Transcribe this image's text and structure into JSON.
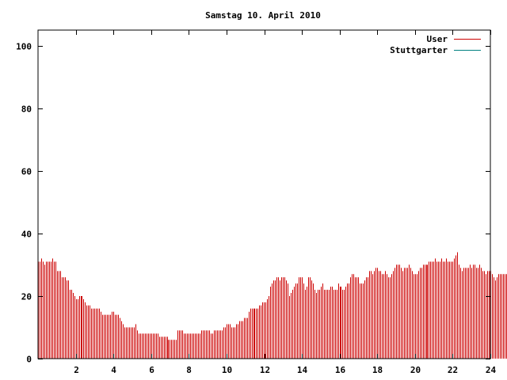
{
  "chart_data": {
    "type": "bar",
    "title": "Samstag 10. April 2010",
    "xlabel": "",
    "ylabel": "",
    "xlim": [
      0,
      24
    ],
    "ylim": [
      0,
      105
    ],
    "x_ticks": [
      2,
      4,
      6,
      8,
      10,
      12,
      14,
      16,
      18,
      20,
      22,
      24
    ],
    "y_ticks": [
      0,
      20,
      40,
      60,
      80,
      100
    ],
    "grid": false,
    "legend_position": "top-right",
    "bar_interval_hours": 0.0833,
    "series": [
      {
        "name": "User",
        "color": "#cc0000",
        "values": [
          31,
          31,
          32,
          31,
          30,
          31,
          31,
          31,
          31,
          32,
          31,
          31,
          28,
          28,
          28,
          26,
          26,
          26,
          25,
          25,
          22,
          22,
          21,
          20,
          19,
          19,
          20,
          20,
          20,
          19,
          18,
          17,
          17,
          17,
          16,
          16,
          16,
          16,
          16,
          16,
          15,
          14,
          14,
          14,
          14,
          14,
          14,
          15,
          15,
          14,
          14,
          14,
          13,
          12,
          11,
          10,
          10,
          10,
          10,
          10,
          10,
          10,
          11,
          9,
          8,
          8,
          8,
          8,
          8,
          8,
          8,
          8,
          8,
          8,
          8,
          8,
          8,
          7,
          7,
          7,
          7,
          7,
          7,
          6,
          6,
          6,
          6,
          6,
          6,
          9,
          9,
          9,
          9,
          8,
          8,
          8,
          8,
          8,
          8,
          8,
          8,
          8,
          8,
          8,
          9,
          9,
          9,
          9,
          9,
          9,
          8,
          8,
          9,
          9,
          9,
          9,
          9,
          9,
          10,
          10,
          11,
          11,
          11,
          10,
          10,
          10,
          11,
          11,
          12,
          12,
          12,
          13,
          13,
          13,
          15,
          16,
          16,
          16,
          16,
          16,
          16,
          17,
          17,
          18,
          18,
          18,
          19,
          20,
          23,
          24,
          25,
          25,
          26,
          26,
          25,
          26,
          26,
          26,
          25,
          24,
          20,
          21,
          22,
          23,
          24,
          24,
          26,
          26,
          26,
          24,
          22,
          23,
          26,
          26,
          25,
          24,
          22,
          21,
          22,
          22,
          23,
          24,
          22,
          22,
          22,
          22,
          23,
          23,
          22,
          22,
          22,
          24,
          23,
          23,
          22,
          22,
          23,
          24,
          24,
          26,
          27,
          27,
          26,
          26,
          26,
          24,
          24,
          24,
          25,
          26,
          26,
          28,
          28,
          27,
          28,
          29,
          29,
          28,
          28,
          27,
          27,
          28,
          27,
          26,
          26,
          27,
          28,
          29,
          30,
          30,
          30,
          29,
          28,
          29,
          29,
          29,
          30,
          29,
          28,
          27,
          27,
          27,
          28,
          29,
          29,
          30,
          30,
          30,
          30,
          31,
          31,
          31,
          31,
          32,
          31,
          31,
          31,
          32,
          31,
          31,
          32,
          31,
          31,
          31,
          31,
          32,
          33,
          34,
          30,
          29,
          28,
          29,
          29,
          29,
          29,
          30,
          29,
          30,
          30,
          29,
          29,
          30,
          29,
          28,
          28,
          27,
          28,
          28,
          28,
          27,
          26,
          25,
          26,
          27,
          27,
          27,
          27,
          27,
          27,
          27
        ]
      },
      {
        "name": "Stuttgarter",
        "color": "#008080",
        "values": []
      }
    ]
  }
}
